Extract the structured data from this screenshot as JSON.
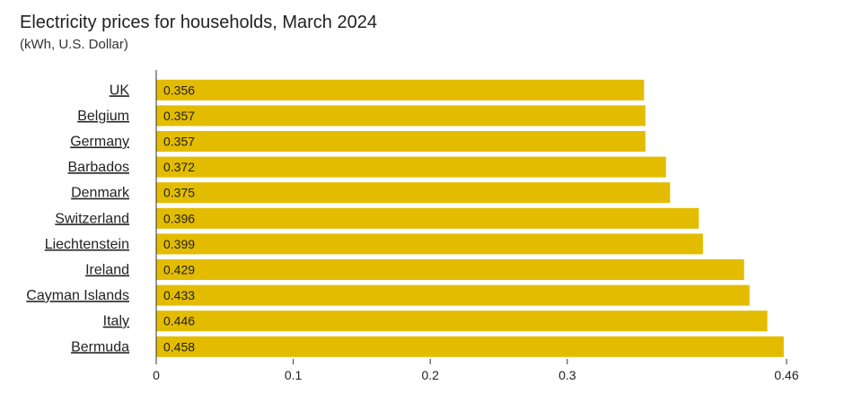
{
  "chart_data": {
    "type": "bar",
    "orientation": "horizontal",
    "title": "Electricity prices for households, March 2024",
    "subtitle": "(kWh, U.S. Dollar)",
    "categories": [
      "UK",
      "Belgium",
      "Germany",
      "Barbados",
      "Denmark",
      "Switzerland",
      "Liechtenstein",
      "Ireland",
      "Cayman Islands",
      "Italy",
      "Bermuda"
    ],
    "values": [
      0.356,
      0.357,
      0.357,
      0.372,
      0.375,
      0.396,
      0.399,
      0.429,
      0.433,
      0.446,
      0.458
    ],
    "value_labels": [
      "0.356",
      "0.357",
      "0.357",
      "0.372",
      "0.375",
      "0.396",
      "0.399",
      "0.429",
      "0.433",
      "0.446",
      "0.458"
    ],
    "xlim": [
      0,
      0.46
    ],
    "xticks": [
      0,
      0.1,
      0.2,
      0.3,
      0.46
    ],
    "xtick_labels": [
      "0",
      "0.1",
      "0.2",
      "0.3",
      "0.46"
    ],
    "xlabel": "",
    "ylabel": "",
    "grid": false,
    "bar_color": "#E3BC00"
  }
}
